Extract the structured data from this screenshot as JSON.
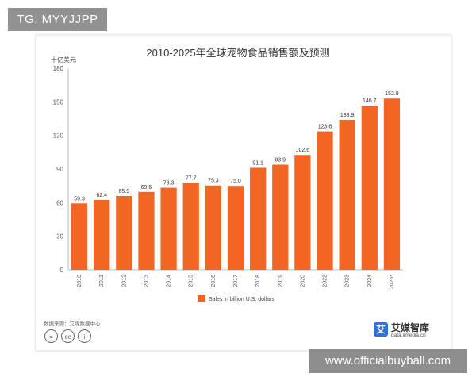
{
  "overlay": {
    "tag": "TG: MYYJJPP",
    "watermark": "www.officialbuyball.com"
  },
  "source_text": "数据来源：艾媒数据中心",
  "logo": {
    "mark": "艾",
    "name": "艾媒智库",
    "url": "data.iimedia.cn"
  },
  "license_icons": [
    "=",
    "cc",
    "i"
  ],
  "chart_data": {
    "type": "bar",
    "title": "2010-2025年全球宠物食品销售额及预测",
    "ylabel": "十亿美元",
    "categories": [
      "2010",
      "2011",
      "2012",
      "2013",
      "2014",
      "2015",
      "2016",
      "2017",
      "2018",
      "2019",
      "2020",
      "2022",
      "2023",
      "2024",
      "2025*"
    ],
    "series": [
      {
        "name": "Sales in billion U.S. dollars",
        "values": [
          59.3,
          62.4,
          65.9,
          69.6,
          73.3,
          77.7,
          75.3,
          75.0,
          91.1,
          93.9,
          102.6,
          123.6,
          133.9,
          146.7,
          152.9
        ]
      }
    ],
    "ylim": [
      0,
      180
    ],
    "yticks": [
      0,
      30,
      60,
      90,
      120,
      150,
      180
    ],
    "color": "#f26522",
    "grid": false,
    "legend_position": "bottom"
  }
}
